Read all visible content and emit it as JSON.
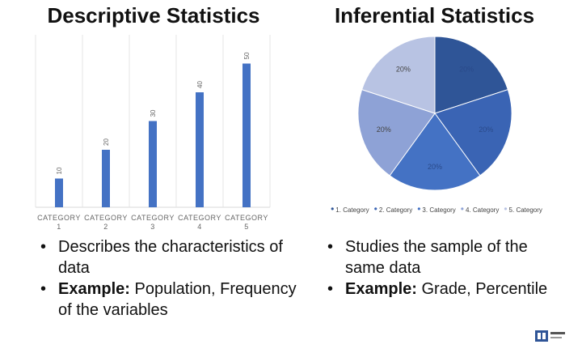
{
  "chart_data": [
    {
      "type": "bar",
      "title": "Descriptive Statistics",
      "categories": [
        "CATEGORY 1",
        "CATEGORY 2",
        "CATEGORY 3",
        "CATEGORY 4",
        "CATEGORY 5"
      ],
      "values": [
        10,
        20,
        30,
        40,
        50
      ],
      "color": "#4472c4",
      "ylim": [
        0,
        60
      ]
    },
    {
      "type": "pie",
      "title": "Inferential Statistics",
      "categories": [
        "1. Category",
        "2. Category",
        "3. Category",
        "4. Category",
        "5. Category"
      ],
      "values": [
        20,
        20,
        20,
        20,
        20
      ],
      "value_labels": [
        "20%",
        "20%",
        "20%",
        "20%",
        "20%"
      ],
      "colors": [
        "#2f5597",
        "#3a64b4",
        "#4472c4",
        "#8ea2d6",
        "#b8c3e3"
      ]
    }
  ],
  "left_bullets": [
    {
      "text": "Describes the characteristics of data"
    },
    {
      "label": "Example:",
      "text": "Population, Frequency of the variables"
    }
  ],
  "right_bullets": [
    {
      "text": "Studies the sample of the same data"
    },
    {
      "label": "Example:",
      "text": "Grade, Percentile"
    }
  ]
}
